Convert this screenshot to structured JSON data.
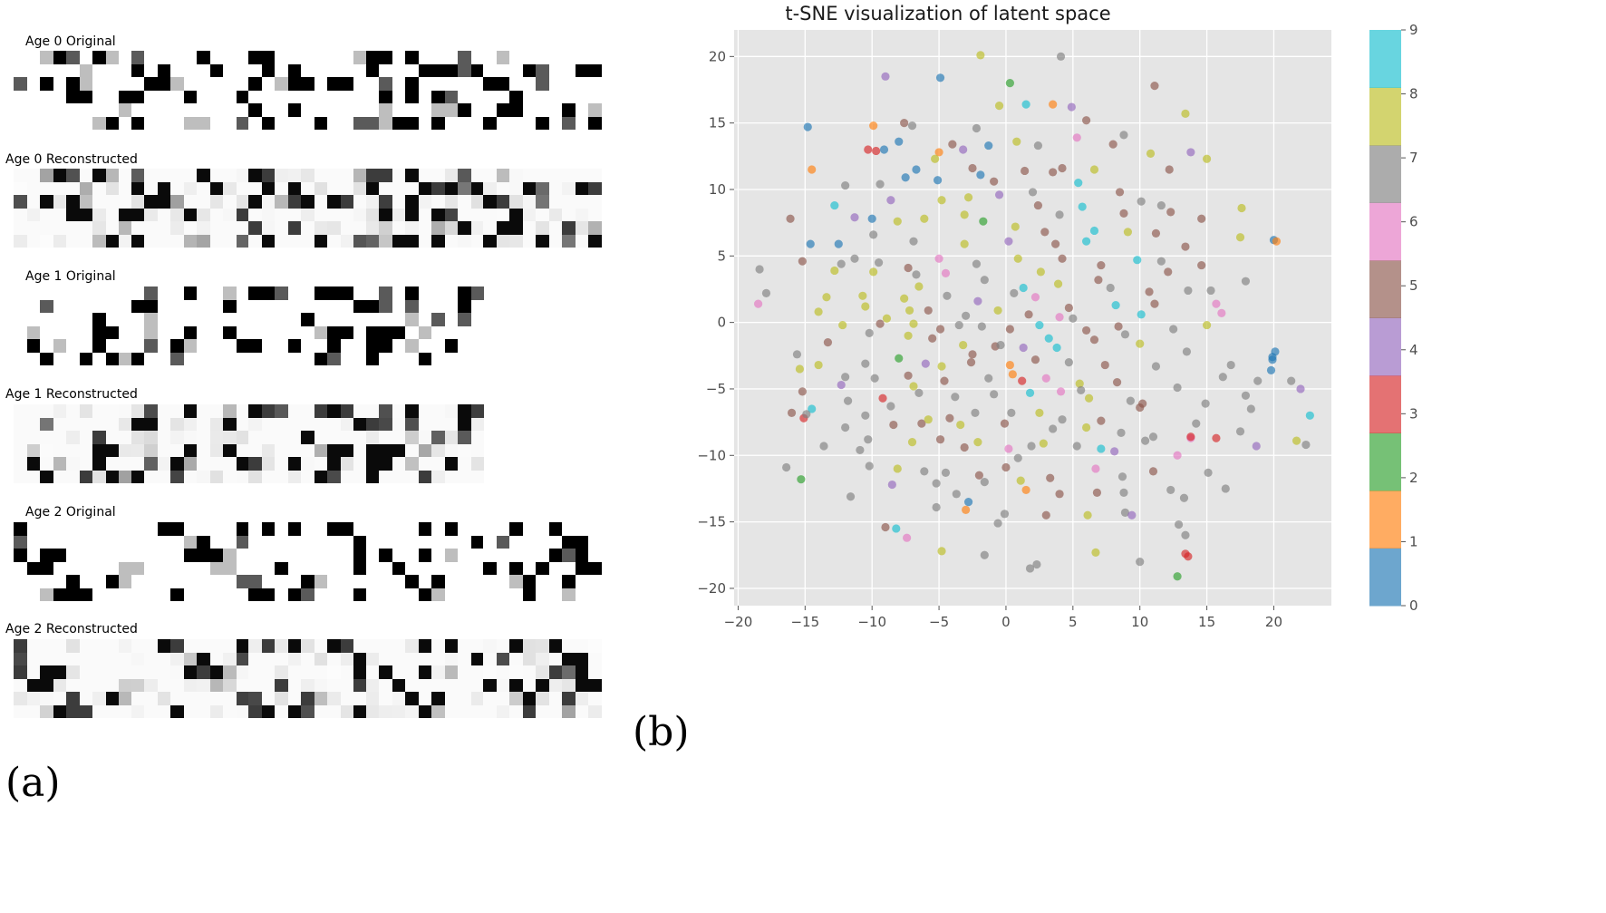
{
  "left_panel": {
    "labels": [
      "Age 0 Original",
      "Age 0 Reconstructed",
      "Age 1 Original",
      "Age 1 Reconstructed",
      "Age 2 Original",
      "Age 2 Reconstructed"
    ],
    "figure_label": "(a)"
  },
  "right_panel": {
    "figure_label": "(b)"
  },
  "chart_data": {
    "type": "scatter",
    "title": "t-SNE visualization of latent space",
    "xlabel": "",
    "ylabel": "",
    "xlim": [
      -20.3,
      24.3
    ],
    "ylim": [
      -21.3,
      22.0
    ],
    "xticks": [
      -20,
      -15,
      -10,
      -5,
      0,
      5,
      10,
      15,
      20
    ],
    "yticks": [
      -20,
      -15,
      -10,
      -5,
      0,
      5,
      10,
      15,
      20
    ],
    "grid": true,
    "colorbar": {
      "ticks": [
        0,
        1,
        2,
        3,
        4,
        5,
        6,
        7,
        8,
        9
      ],
      "colors": [
        "#1f77b4",
        "#ff7f0e",
        "#2ca02c",
        "#d62728",
        "#9467bd",
        "#8c564b",
        "#e377c2",
        "#7f7f7f",
        "#bcbd22",
        "#17becf"
      ]
    },
    "point_alpha": 0.65,
    "points": [
      [
        -4.9,
        18.4,
        0
      ],
      [
        -9.0,
        18.5,
        4
      ],
      [
        -1.9,
        20.1,
        8
      ],
      [
        4.1,
        20.0,
        7
      ],
      [
        0.3,
        18.0,
        2
      ],
      [
        11.1,
        17.8,
        5
      ],
      [
        -14.8,
        14.7,
        0
      ],
      [
        -9.9,
        14.8,
        1
      ],
      [
        -7.6,
        15.0,
        5
      ],
      [
        -7.0,
        14.8,
        7
      ],
      [
        -4.0,
        13.4,
        5
      ],
      [
        -2.2,
        14.6,
        7
      ],
      [
        -0.5,
        16.3,
        8
      ],
      [
        1.5,
        16.4,
        9
      ],
      [
        3.5,
        16.4,
        1
      ],
      [
        4.9,
        16.2,
        4
      ],
      [
        6.0,
        15.2,
        5
      ],
      [
        8.8,
        14.1,
        7
      ],
      [
        13.4,
        15.7,
        8
      ],
      [
        -10.3,
        13.0,
        3
      ],
      [
        -9.7,
        12.9,
        3
      ],
      [
        -9.1,
        13.0,
        0
      ],
      [
        -8.0,
        13.6,
        0
      ],
      [
        -5.0,
        12.8,
        1
      ],
      [
        -3.2,
        13.0,
        4
      ],
      [
        -1.3,
        13.3,
        0
      ],
      [
        0.8,
        13.6,
        8
      ],
      [
        2.4,
        13.3,
        7
      ],
      [
        5.3,
        13.9,
        6
      ],
      [
        8.0,
        13.4,
        5
      ],
      [
        10.8,
        12.7,
        8
      ],
      [
        13.8,
        12.8,
        4
      ],
      [
        15.0,
        12.3,
        8
      ],
      [
        -6.7,
        11.5,
        0
      ],
      [
        -5.3,
        12.3,
        8
      ],
      [
        -2.5,
        11.6,
        5
      ],
      [
        -1.9,
        11.1,
        0
      ],
      [
        1.4,
        11.4,
        5
      ],
      [
        3.5,
        11.3,
        5
      ],
      [
        4.2,
        11.6,
        5
      ],
      [
        6.6,
        11.5,
        8
      ],
      [
        12.2,
        11.5,
        5
      ],
      [
        -14.5,
        11.5,
        1
      ],
      [
        -12.0,
        10.3,
        7
      ],
      [
        -9.4,
        10.4,
        7
      ],
      [
        -7.5,
        10.9,
        0
      ],
      [
        -5.1,
        10.7,
        0
      ],
      [
        -0.9,
        10.6,
        5
      ],
      [
        2.0,
        9.8,
        7
      ],
      [
        5.4,
        10.5,
        9
      ],
      [
        8.5,
        9.8,
        5
      ],
      [
        10.1,
        9.1,
        7
      ],
      [
        11.6,
        8.8,
        7
      ],
      [
        -12.8,
        8.8,
        9
      ],
      [
        -11.3,
        7.9,
        4
      ],
      [
        -8.6,
        9.2,
        4
      ],
      [
        -4.8,
        9.2,
        8
      ],
      [
        -2.8,
        9.4,
        8
      ],
      [
        -0.5,
        9.6,
        4
      ],
      [
        2.4,
        8.8,
        5
      ],
      [
        4.0,
        8.1,
        7
      ],
      [
        5.7,
        8.7,
        9
      ],
      [
        8.8,
        8.2,
        5
      ],
      [
        12.3,
        8.3,
        5
      ],
      [
        14.6,
        7.8,
        5
      ],
      [
        17.6,
        8.6,
        8
      ],
      [
        -16.1,
        7.8,
        5
      ],
      [
        -10.0,
        7.8,
        0
      ],
      [
        -8.1,
        7.6,
        8
      ],
      [
        -6.1,
        7.8,
        8
      ],
      [
        -3.1,
        8.1,
        8
      ],
      [
        -1.7,
        7.6,
        2
      ],
      [
        0.7,
        7.2,
        8
      ],
      [
        2.9,
        6.8,
        5
      ],
      [
        6.6,
        6.9,
        9
      ],
      [
        9.1,
        6.8,
        8
      ],
      [
        11.2,
        6.7,
        5
      ],
      [
        -14.6,
        5.9,
        0
      ],
      [
        -12.5,
        5.9,
        0
      ],
      [
        -9.9,
        6.6,
        7
      ],
      [
        -6.9,
        6.1,
        7
      ],
      [
        -3.1,
        5.9,
        8
      ],
      [
        0.2,
        6.1,
        4
      ],
      [
        3.7,
        5.9,
        5
      ],
      [
        6.0,
        6.1,
        9
      ],
      [
        13.4,
        5.7,
        5
      ],
      [
        17.5,
        6.4,
        8
      ],
      [
        20.0,
        6.2,
        0
      ],
      [
        20.2,
        6.1,
        1
      ],
      [
        -15.2,
        4.6,
        5
      ],
      [
        -12.3,
        4.4,
        7
      ],
      [
        -9.5,
        4.5,
        7
      ],
      [
        -7.3,
        4.1,
        5
      ],
      [
        -5.0,
        4.8,
        6
      ],
      [
        -2.2,
        4.4,
        7
      ],
      [
        0.9,
        4.8,
        8
      ],
      [
        4.2,
        4.8,
        5
      ],
      [
        7.1,
        4.3,
        5
      ],
      [
        9.8,
        4.7,
        9
      ],
      [
        11.6,
        4.6,
        7
      ],
      [
        14.6,
        4.3,
        5
      ],
      [
        -18.4,
        4.0,
        7
      ],
      [
        -12.8,
        3.9,
        8
      ],
      [
        -9.9,
        3.8,
        8
      ],
      [
        -6.7,
        3.6,
        7
      ],
      [
        -4.5,
        3.7,
        6
      ],
      [
        -1.6,
        3.2,
        7
      ],
      [
        1.3,
        2.6,
        9
      ],
      [
        3.9,
        2.9,
        8
      ],
      [
        7.8,
        2.6,
        7
      ],
      [
        10.7,
        2.3,
        5
      ],
      [
        13.6,
        2.4,
        7
      ],
      [
        15.3,
        2.4,
        7
      ],
      [
        -17.9,
        2.2,
        7
      ],
      [
        -13.4,
        1.9,
        8
      ],
      [
        -10.7,
        2.0,
        8
      ],
      [
        -7.6,
        1.8,
        8
      ],
      [
        -4.4,
        2.0,
        7
      ],
      [
        -2.1,
        1.6,
        4
      ],
      [
        0.6,
        2.2,
        7
      ],
      [
        2.2,
        1.9,
        6
      ],
      [
        4.7,
        1.1,
        5
      ],
      [
        8.2,
        1.3,
        9
      ],
      [
        11.1,
        1.4,
        5
      ],
      [
        15.7,
        1.4,
        6
      ],
      [
        -18.5,
        1.4,
        6
      ],
      [
        -14.0,
        0.8,
        8
      ],
      [
        -10.5,
        1.2,
        8
      ],
      [
        -7.2,
        0.9,
        8
      ],
      [
        -5.8,
        0.9,
        5
      ],
      [
        -3.0,
        0.5,
        7
      ],
      [
        -0.6,
        0.9,
        8
      ],
      [
        1.7,
        0.6,
        5
      ],
      [
        5.0,
        0.3,
        7
      ],
      [
        10.1,
        0.6,
        9
      ],
      [
        16.1,
        0.7,
        6
      ],
      [
        -12.2,
        -0.2,
        8
      ],
      [
        -9.4,
        -0.1,
        5
      ],
      [
        -6.9,
        -0.1,
        8
      ],
      [
        -4.9,
        -0.5,
        5
      ],
      [
        -1.8,
        -0.3,
        7
      ],
      [
        0.3,
        -0.5,
        5
      ],
      [
        2.5,
        -0.2,
        9
      ],
      [
        6.0,
        -0.6,
        5
      ],
      [
        8.9,
        -0.9,
        7
      ],
      [
        12.5,
        -0.5,
        7
      ],
      [
        15.0,
        -0.2,
        8
      ],
      [
        -15.6,
        -2.4,
        7
      ],
      [
        -13.3,
        -1.5,
        5
      ],
      [
        -10.2,
        -0.8,
        7
      ],
      [
        -7.3,
        -1.0,
        8
      ],
      [
        -5.5,
        -1.2,
        5
      ],
      [
        -3.2,
        -1.7,
        8
      ],
      [
        -0.8,
        -1.8,
        5
      ],
      [
        1.3,
        -1.9,
        4
      ],
      [
        3.8,
        -1.9,
        9
      ],
      [
        6.6,
        -1.3,
        5
      ],
      [
        10.0,
        -1.6,
        8
      ],
      [
        13.5,
        -2.2,
        7
      ],
      [
        20.1,
        -2.2,
        0
      ],
      [
        -14.0,
        -3.2,
        8
      ],
      [
        -10.5,
        -3.1,
        7
      ],
      [
        -8.0,
        -2.7,
        2
      ],
      [
        -6.0,
        -3.1,
        4
      ],
      [
        -4.8,
        -3.3,
        8
      ],
      [
        -2.6,
        -3.0,
        5
      ],
      [
        0.3,
        -3.2,
        1
      ],
      [
        2.2,
        -2.8,
        5
      ],
      [
        4.7,
        -3.0,
        7
      ],
      [
        7.4,
        -3.2,
        5
      ],
      [
        11.2,
        -3.3,
        7
      ],
      [
        16.8,
        -3.2,
        7
      ],
      [
        19.9,
        -2.8,
        0
      ],
      [
        -15.4,
        -3.5,
        8
      ],
      [
        -12.0,
        -4.1,
        7
      ],
      [
        -9.8,
        -4.2,
        7
      ],
      [
        -7.3,
        -4.0,
        5
      ],
      [
        -4.6,
        -4.4,
        5
      ],
      [
        -1.3,
        -4.2,
        7
      ],
      [
        1.2,
        -4.4,
        3
      ],
      [
        3.0,
        -4.2,
        6
      ],
      [
        5.5,
        -4.6,
        8
      ],
      [
        8.3,
        -4.5,
        5
      ],
      [
        12.8,
        -4.9,
        7
      ],
      [
        18.8,
        -4.4,
        7
      ],
      [
        21.3,
        -4.4,
        7
      ],
      [
        -15.2,
        -5.2,
        5
      ],
      [
        -11.8,
        -5.9,
        7
      ],
      [
        -9.2,
        -5.7,
        3
      ],
      [
        -6.9,
        -4.8,
        8
      ],
      [
        -3.8,
        -5.6,
        7
      ],
      [
        -0.9,
        -5.4,
        7
      ],
      [
        1.8,
        -5.3,
        9
      ],
      [
        4.1,
        -5.2,
        6
      ],
      [
        6.2,
        -5.7,
        8
      ],
      [
        10.2,
        -6.1,
        5
      ],
      [
        14.9,
        -6.1,
        7
      ],
      [
        17.9,
        -5.5,
        7
      ],
      [
        -16.0,
        -6.8,
        5
      ],
      [
        -14.5,
        -6.5,
        9
      ],
      [
        -10.5,
        -7.0,
        7
      ],
      [
        -8.6,
        -6.3,
        7
      ],
      [
        -4.2,
        -7.2,
        5
      ],
      [
        -2.3,
        -6.8,
        7
      ],
      [
        0.4,
        -6.8,
        7
      ],
      [
        2.5,
        -6.8,
        8
      ],
      [
        4.2,
        -7.3,
        7
      ],
      [
        7.1,
        -7.4,
        5
      ],
      [
        10.0,
        -6.4,
        5
      ],
      [
        14.2,
        -7.6,
        7
      ],
      [
        18.3,
        -6.5,
        7
      ],
      [
        -15.1,
        -7.2,
        3
      ],
      [
        -12.0,
        -7.9,
        7
      ],
      [
        -8.4,
        -7.7,
        5
      ],
      [
        -6.3,
        -7.6,
        5
      ],
      [
        -3.4,
        -7.7,
        8
      ],
      [
        -0.1,
        -7.6,
        5
      ],
      [
        3.5,
        -8.0,
        7
      ],
      [
        6.0,
        -7.9,
        8
      ],
      [
        8.6,
        -8.3,
        7
      ],
      [
        11.0,
        -8.6,
        7
      ],
      [
        13.8,
        -8.7,
        6
      ],
      [
        17.5,
        -8.2,
        7
      ],
      [
        21.7,
        -8.9,
        8
      ],
      [
        -13.6,
        -9.3,
        7
      ],
      [
        -10.3,
        -8.8,
        7
      ],
      [
        -7.0,
        -9.0,
        8
      ],
      [
        -4.9,
        -8.8,
        5
      ],
      [
        -2.1,
        -9.0,
        8
      ],
      [
        0.2,
        -9.5,
        6
      ],
      [
        2.8,
        -9.1,
        8
      ],
      [
        5.3,
        -9.3,
        7
      ],
      [
        7.1,
        -9.5,
        9
      ],
      [
        10.4,
        -8.9,
        7
      ],
      [
        13.8,
        -8.6,
        3
      ],
      [
        15.7,
        -8.7,
        3
      ],
      [
        18.7,
        -9.3,
        4
      ],
      [
        22.4,
        -9.2,
        7
      ],
      [
        -15.3,
        -11.8,
        2
      ],
      [
        -16.4,
        -10.9,
        7
      ],
      [
        -10.2,
        -10.8,
        7
      ],
      [
        -8.1,
        -11.0,
        8
      ],
      [
        -6.1,
        -11.2,
        7
      ],
      [
        -4.5,
        -11.3,
        7
      ],
      [
        -2.0,
        -11.5,
        5
      ],
      [
        0.0,
        -10.9,
        5
      ],
      [
        1.1,
        -11.9,
        8
      ],
      [
        3.3,
        -11.7,
        5
      ],
      [
        6.7,
        -11.0,
        6
      ],
      [
        8.7,
        -11.6,
        7
      ],
      [
        11.0,
        -11.2,
        5
      ],
      [
        12.8,
        -10.0,
        6
      ],
      [
        15.1,
        -11.3,
        7
      ],
      [
        16.4,
        -12.5,
        7
      ],
      [
        -11.6,
        -13.1,
        7
      ],
      [
        -8.5,
        -12.2,
        4
      ],
      [
        -5.2,
        -12.1,
        7
      ],
      [
        -3.7,
        -12.9,
        7
      ],
      [
        -1.6,
        -12.0,
        7
      ],
      [
        1.5,
        -12.6,
        1
      ],
      [
        4.0,
        -12.9,
        5
      ],
      [
        6.8,
        -12.8,
        5
      ],
      [
        8.8,
        -12.8,
        7
      ],
      [
        12.3,
        -12.6,
        7
      ],
      [
        13.3,
        -13.2,
        7
      ],
      [
        -9.0,
        -15.4,
        5
      ],
      [
        -8.2,
        -15.5,
        9
      ],
      [
        -7.4,
        -16.2,
        6
      ],
      [
        -5.2,
        -13.9,
        7
      ],
      [
        -2.8,
        -13.5,
        0
      ],
      [
        -0.6,
        -15.1,
        7
      ],
      [
        -0.1,
        -14.4,
        7
      ],
      [
        3.0,
        -14.5,
        5
      ],
      [
        6.1,
        -14.5,
        8
      ],
      [
        8.9,
        -14.3,
        7
      ],
      [
        9.4,
        -14.5,
        4
      ],
      [
        12.9,
        -15.2,
        7
      ],
      [
        13.4,
        -16.0,
        7
      ],
      [
        -4.8,
        -17.2,
        8
      ],
      [
        -1.6,
        -17.5,
        7
      ],
      [
        2.3,
        -18.2,
        7
      ],
      [
        1.8,
        -18.5,
        7
      ],
      [
        6.7,
        -17.3,
        8
      ],
      [
        10.0,
        -18.0,
        7
      ],
      [
        13.4,
        -17.4,
        3
      ],
      [
        13.6,
        -17.6,
        3
      ],
      [
        12.8,
        -19.1,
        2
      ],
      [
        -3.0,
        -14.1,
        1
      ],
      [
        -14.9,
        -6.9,
        7
      ],
      [
        -10.9,
        -9.6,
        7
      ],
      [
        -6.5,
        -5.3,
        7
      ],
      [
        -2.5,
        -2.4,
        5
      ],
      [
        3.2,
        -1.2,
        9
      ],
      [
        9.3,
        -5.9,
        7
      ],
      [
        16.2,
        -4.1,
        7
      ],
      [
        19.8,
        -3.6,
        0
      ],
      [
        22.0,
        -5.0,
        4
      ],
      [
        -11.3,
        4.8,
        7
      ],
      [
        -6.5,
        2.7,
        8
      ],
      [
        -3.5,
        -0.2,
        7
      ],
      [
        4.0,
        0.4,
        6
      ],
      [
        8.4,
        -0.3,
        5
      ],
      [
        12.1,
        3.8,
        5
      ],
      [
        17.9,
        3.1,
        7
      ],
      [
        19.9,
        -2.6,
        0
      ],
      [
        22.7,
        -7.0,
        9
      ],
      [
        -8.9,
        0.3,
        8
      ],
      [
        -0.4,
        -1.7,
        7
      ],
      [
        2.6,
        3.8,
        8
      ],
      [
        6.9,
        3.2,
        5
      ],
      [
        -12.3,
        -4.7,
        4
      ],
      [
        0.5,
        -3.9,
        1
      ],
      [
        5.6,
        -5.1,
        7
      ],
      [
        8.1,
        -9.7,
        4
      ],
      [
        -3.1,
        -9.4,
        5
      ],
      [
        -5.8,
        -7.3,
        8
      ],
      [
        1.9,
        -9.3,
        7
      ],
      [
        0.9,
        -10.2,
        7
      ]
    ]
  }
}
